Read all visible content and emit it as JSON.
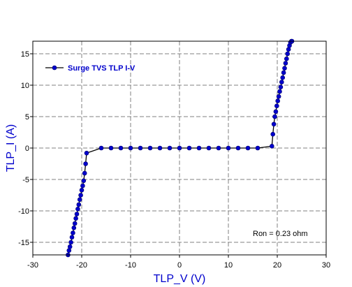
{
  "chart_data": {
    "type": "line",
    "xlabel": "TLP_V (V)",
    "ylabel": "TLP_I (A)",
    "xlim": [
      -30,
      30
    ],
    "ylim": [
      -17,
      17
    ],
    "xticks": [
      -30,
      -20,
      -10,
      0,
      10,
      20,
      30
    ],
    "yticks": [
      -15,
      -10,
      -5,
      0,
      5,
      10,
      15
    ],
    "grid": true,
    "legend_position": "top-left",
    "annotation": "Ron = 0.23 ohm",
    "series": [
      {
        "name": "Surge TVS TLP I-V",
        "color": "#0000cc",
        "line_color": "#000000",
        "x": [
          -22.8,
          -22.6,
          -22.4,
          -22.2,
          -22.0,
          -21.8,
          -21.6,
          -21.4,
          -21.2,
          -21.0,
          -20.8,
          -20.6,
          -20.4,
          -20.2,
          -20.0,
          -19.8,
          -19.6,
          -19.4,
          -19.2,
          -19.0,
          -16.0,
          -14.0,
          -12.0,
          -10.0,
          -8.0,
          -6.0,
          -4.0,
          -2.0,
          0.0,
          2.0,
          4.0,
          6.0,
          8.0,
          10.0,
          12.0,
          14.0,
          16.0,
          18.9,
          19.1,
          19.3,
          19.5,
          19.7,
          19.9,
          20.1,
          20.3,
          20.5,
          20.7,
          20.9,
          21.1,
          21.3,
          21.5,
          21.7,
          21.9,
          22.1,
          22.3,
          22.5,
          22.7,
          22.9,
          23.0
        ],
        "y": [
          -17.0,
          -16.3,
          -15.7,
          -15.0,
          -14.2,
          -13.5,
          -12.7,
          -12.0,
          -11.2,
          -10.5,
          -9.7,
          -9.0,
          -8.2,
          -7.5,
          -6.7,
          -6.0,
          -5.2,
          -4.0,
          -2.5,
          -0.8,
          0.0,
          0.0,
          0.0,
          0.0,
          0.0,
          0.0,
          0.0,
          0.0,
          0.0,
          0.0,
          0.0,
          0.0,
          0.0,
          0.0,
          0.0,
          0.0,
          0.0,
          0.3,
          2.2,
          3.8,
          5.0,
          5.8,
          6.7,
          7.5,
          8.2,
          9.0,
          9.7,
          10.5,
          11.2,
          12.0,
          12.7,
          13.5,
          14.2,
          15.0,
          15.7,
          16.3,
          16.8,
          17.0,
          17.0
        ]
      }
    ]
  }
}
